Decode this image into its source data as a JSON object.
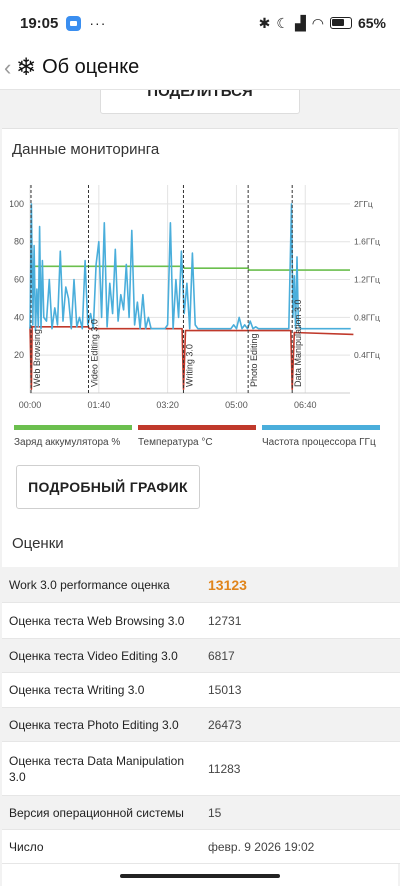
{
  "status": {
    "time": "19:05",
    "dots": "···",
    "battery": "65"
  },
  "app_bar": {
    "title": "Об оценке"
  },
  "share_button": {
    "label": "ПОДЕЛИТЬСЯ"
  },
  "monitoring": {
    "title": "Данные мониторинга",
    "chart_data": {
      "type": "line",
      "x_ticks": [
        "00:00",
        "01:40",
        "03:20",
        "05:00",
        "06:40"
      ],
      "y_left_ticks": [
        20,
        40,
        60,
        80,
        100
      ],
      "y_right_ticks": [
        "0.4ГГц",
        "0.8ГГц",
        "1.2ГГц",
        "1.6ГГц",
        "2ГГц"
      ],
      "ylim": [
        0,
        110
      ],
      "xlim_seconds": [
        0,
        465
      ],
      "segments": [
        {
          "label": "Web Browsing",
          "x": 0
        },
        {
          "label": "Video Editing 3.0",
          "x": 85
        },
        {
          "label": "Writing 3.0",
          "x": 223
        },
        {
          "label": "Photo Editing",
          "x": 317
        },
        {
          "label": "Data Manipulation 3.0",
          "x": 381
        }
      ],
      "series": [
        {
          "name": "Заряд аккумулятора %",
          "color": "#6bbf4e",
          "x": [
            0,
            223,
            224,
            317,
            318,
            465
          ],
          "y": [
            67,
            67,
            66,
            66,
            65,
            65
          ]
        },
        {
          "name": "Температура °C",
          "color": "#c0392b",
          "x": [
            0,
            2,
            3,
            85,
            86,
            221,
            223,
            226,
            317,
            379,
            381,
            384,
            470
          ],
          "y": [
            35,
            2,
            35,
            35,
            34,
            34,
            2,
            33,
            33,
            33,
            2,
            32,
            31
          ]
        },
        {
          "name": "Частота процессора ГГц",
          "color": "#4aaedb",
          "x": [
            0,
            2,
            4,
            6,
            8,
            10,
            12,
            14,
            16,
            18,
            20,
            24,
            28,
            32,
            36,
            40,
            44,
            48,
            52,
            56,
            60,
            64,
            68,
            72,
            76,
            80,
            84,
            88,
            92,
            96,
            100,
            104,
            108,
            112,
            116,
            120,
            124,
            128,
            132,
            136,
            140,
            144,
            148,
            152,
            156,
            160,
            164,
            168,
            172,
            176,
            180,
            184,
            188,
            192,
            196,
            200,
            204,
            208,
            212,
            216,
            220,
            224,
            228,
            232,
            236,
            240,
            244,
            248,
            252,
            256,
            260,
            264,
            268,
            272,
            276,
            280,
            284,
            288,
            292,
            296,
            300,
            304,
            308,
            312,
            316,
            320,
            324,
            328,
            332,
            336,
            340,
            344,
            348,
            352,
            356,
            360,
            364,
            368,
            372,
            376,
            380,
            382,
            384,
            386,
            388,
            390,
            394,
            398,
            402,
            406,
            410,
            414,
            418,
            422,
            426,
            430,
            434,
            438,
            442,
            446,
            450,
            454,
            458,
            462,
            466
          ],
          "y": [
            34,
            100,
            36,
            78,
            33,
            55,
            35,
            88,
            34,
            70,
            40,
            38,
            60,
            34,
            45,
            36,
            75,
            38,
            56,
            50,
            34,
            60,
            35,
            40,
            34,
            70,
            36,
            42,
            34,
            68,
            80,
            40,
            90,
            35,
            58,
            42,
            76,
            38,
            52,
            44,
            68,
            40,
            86,
            36,
            48,
            34,
            52,
            34,
            40,
            34,
            34,
            34,
            34,
            34,
            34,
            36,
            90,
            34,
            60,
            40,
            75,
            42,
            58,
            34,
            74,
            36,
            34,
            34,
            34,
            34,
            34,
            34,
            34,
            34,
            34,
            34,
            34,
            34,
            34,
            36,
            34,
            40,
            34,
            36,
            34,
            38,
            34,
            35,
            34,
            34,
            34,
            34,
            34,
            34,
            34,
            34,
            34,
            34,
            34,
            34,
            100,
            40,
            62,
            34,
            72,
            36,
            34,
            34,
            34,
            34,
            34,
            34,
            34,
            34,
            34,
            34,
            34,
            34,
            34,
            34,
            34,
            34,
            34,
            34,
            34
          ]
        }
      ]
    },
    "legend": [
      "Заряд аккумулятора %",
      "Температура °C",
      "Частота процессора ГГц"
    ],
    "legend_colors": [
      "#6bbf4e",
      "#c0392b",
      "#4aaedb"
    ],
    "detail_button": "ПОДРОБНЫЙ ГРАФИК"
  },
  "scores": {
    "title": "Оценки",
    "rows": [
      {
        "label": "Work 3.0 performance оценка",
        "value": "13123",
        "main": true
      },
      {
        "label": "Оценка теста Web Browsing 3.0",
        "value": "12731"
      },
      {
        "label": "Оценка теста Video Editing 3.0",
        "value": "6817"
      },
      {
        "label": "Оценка теста Writing 3.0",
        "value": "15013"
      },
      {
        "label": "Оценка теста Photo Editing 3.0",
        "value": "26473"
      },
      {
        "label": "Оценка теста Data Manipulation 3.0",
        "value": "11283"
      },
      {
        "label": "Версия операционной системы",
        "value": "15"
      },
      {
        "label": "Число",
        "value": "февр. 9 2026 19:02"
      }
    ]
  }
}
